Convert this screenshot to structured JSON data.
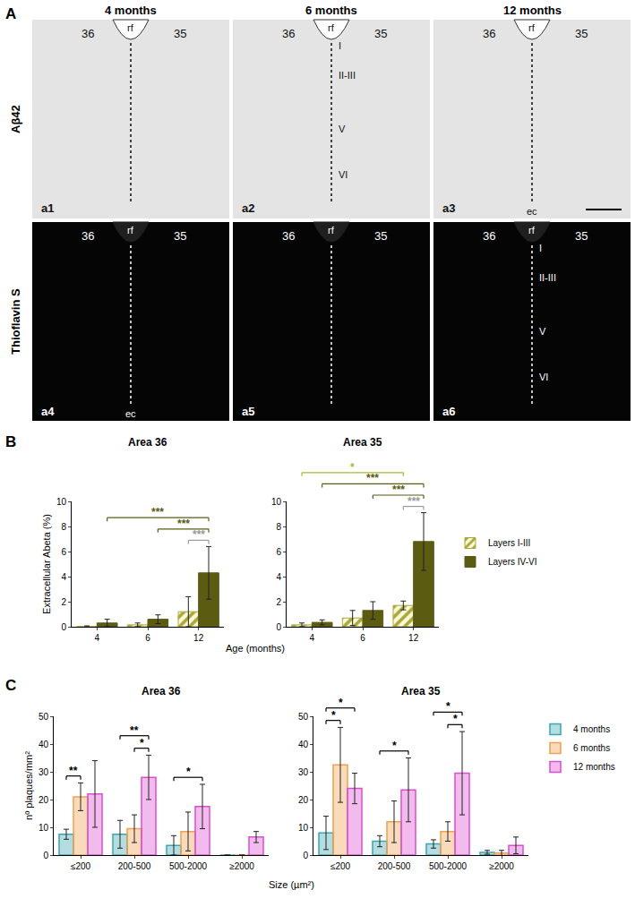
{
  "panel_labels": [
    "A",
    "B",
    "C"
  ],
  "images": {
    "column_titles": [
      "4 months",
      "6 months",
      "12 months"
    ],
    "row_titles": [
      "Aβ42",
      "Thioflavin S"
    ],
    "tiles": [
      [
        {
          "id": "a1",
          "left": "36",
          "right": "35",
          "fissure": "rf"
        },
        {
          "id": "a2",
          "left": "36",
          "right": "35",
          "fissure": "rf",
          "layers": [
            "I",
            "II-III",
            "V",
            "VI"
          ]
        },
        {
          "id": "a3",
          "left": "36",
          "right": "35",
          "fissure": "rf",
          "bottom": "ec"
        }
      ],
      [
        {
          "id": "a4",
          "left": "36",
          "right": "35",
          "fissure": "rf",
          "bottom": "ec"
        },
        {
          "id": "a5",
          "left": "36",
          "right": "35",
          "fissure": "rf"
        },
        {
          "id": "a6",
          "left": "36",
          "right": "35",
          "fissure": "rf",
          "layers": [
            "I",
            "II-III",
            "V",
            "VI"
          ]
        }
      ]
    ]
  },
  "chart_data": [
    {
      "type": "bar",
      "title": "Area 36",
      "categories": [
        "4",
        "6",
        "12"
      ],
      "xlabel": "Age (months)",
      "ylabel": "Extracellular Abeta (%)",
      "ylim": [
        0,
        10
      ],
      "yticks": [
        0,
        2,
        4,
        6,
        8,
        10
      ],
      "series": [
        {
          "name": "Layers I-III",
          "color": "#a9a83a",
          "marker": "hatched",
          "values": [
            0.02,
            0.15,
            1.2
          ],
          "errors": [
            0.05,
            0.15,
            1.2
          ]
        },
        {
          "name": "Layers IV-VI",
          "color": "#5b5b12",
          "values": [
            0.3,
            0.6,
            4.3
          ],
          "errors": [
            0.3,
            0.35,
            2.1
          ]
        }
      ],
      "significance": [
        {
          "from": {
            "category": "12",
            "series": "Layers I-III"
          },
          "to": {
            "category": "12",
            "series": "Layers IV-VI"
          },
          "text": "***",
          "color": "#9a9a9a"
        },
        {
          "from": {
            "category": "6",
            "series": "Layers IV-VI"
          },
          "to": {
            "category": "12",
            "series": "Layers IV-VI"
          },
          "text": "***",
          "color": "#5b5b12"
        },
        {
          "from": {
            "category": "4",
            "series": "Layers IV-VI"
          },
          "to": {
            "category": "12",
            "series": "Layers IV-VI"
          },
          "text": "***",
          "color": "#5b5b12"
        }
      ]
    },
    {
      "type": "bar",
      "title": "Area 35",
      "categories": [
        "4",
        "6",
        "12"
      ],
      "ylim": [
        0,
        10
      ],
      "yticks": [
        0,
        2,
        4,
        6,
        8,
        10
      ],
      "legend": "right",
      "series": [
        {
          "name": "Layers I-III",
          "color": "#a9a83a",
          "marker": "hatched",
          "values": [
            0.15,
            0.7,
            1.7
          ],
          "errors": [
            0.15,
            0.6,
            0.35
          ]
        },
        {
          "name": "Layers IV-VI",
          "color": "#5b5b12",
          "values": [
            0.35,
            1.3,
            6.8
          ],
          "errors": [
            0.2,
            0.7,
            2.3
          ]
        }
      ],
      "significance": [
        {
          "from": {
            "category": "12",
            "series": "Layers I-III"
          },
          "to": {
            "category": "12",
            "series": "Layers IV-VI"
          },
          "text": "***",
          "color": "#9a9a9a"
        },
        {
          "from": {
            "category": "6",
            "series": "Layers IV-VI"
          },
          "to": {
            "category": "12",
            "series": "Layers IV-VI"
          },
          "text": "***",
          "color": "#5b5b12"
        },
        {
          "from": {
            "category": "4",
            "series": "Layers IV-VI"
          },
          "to": {
            "category": "12",
            "series": "Layers IV-VI"
          },
          "text": "***",
          "color": "#5b5b12"
        },
        {
          "from": {
            "category": "4",
            "series": "Layers I-III"
          },
          "to": {
            "category": "12",
            "series": "Layers I-III"
          },
          "text": "*",
          "color": "#a8b832"
        }
      ]
    },
    {
      "type": "bar",
      "title": "Area 36",
      "categories": [
        "≤200",
        "200-500",
        "500-2000",
        "≥2000"
      ],
      "xlabel": "Size (µm²)",
      "ylabel": "nº plaques/mm²",
      "ylim": [
        0,
        50
      ],
      "yticks": [
        0,
        10,
        20,
        30,
        40,
        50
      ],
      "series": [
        {
          "name": "4 months",
          "color": "#3aa6b0",
          "marker": "outlined",
          "values": [
            7.5,
            7.5,
            3.5,
            0
          ],
          "errors": [
            1.8,
            5,
            3.5,
            0
          ]
        },
        {
          "name": "6 months",
          "color": "#f0a050",
          "marker": "outlined",
          "values": [
            21,
            9.5,
            8.5,
            0
          ],
          "errors": [
            5,
            5,
            7,
            0
          ]
        },
        {
          "name": "12 months",
          "color": "#d94fd0",
          "marker": "outlined",
          "values": [
            22,
            28,
            17.5,
            6.5
          ],
          "errors": [
            12,
            8,
            8,
            2
          ]
        }
      ],
      "significance": [
        {
          "from": {
            "category": "≤200",
            "series": "4 months"
          },
          "to": {
            "category": "≤200",
            "series": "6 months"
          },
          "text": "**",
          "color": "#000000"
        },
        {
          "from": {
            "category": "200-500",
            "series": "6 months"
          },
          "to": {
            "category": "200-500",
            "series": "12 months"
          },
          "text": "*",
          "color": "#000000"
        },
        {
          "from": {
            "category": "200-500",
            "series": "4 months"
          },
          "to": {
            "category": "200-500",
            "series": "12 months"
          },
          "text": "**",
          "color": "#000000"
        },
        {
          "from": {
            "category": "500-2000",
            "series": "4 months"
          },
          "to": {
            "category": "500-2000",
            "series": "12 months"
          },
          "text": "*",
          "color": "#000000"
        }
      ]
    },
    {
      "type": "bar",
      "title": "Area 35",
      "categories": [
        "≤200",
        "200-500",
        "500-2000",
        "≥2000"
      ],
      "ylim": [
        0,
        50
      ],
      "yticks": [
        0,
        10,
        20,
        30,
        40,
        50
      ],
      "legend": "right",
      "series": [
        {
          "name": "4 months",
          "color": "#3aa6b0",
          "marker": "outlined",
          "values": [
            8,
            5,
            4,
            1
          ],
          "errors": [
            6,
            2,
            1.5,
            0.7
          ]
        },
        {
          "name": "6 months",
          "color": "#f0a050",
          "marker": "outlined",
          "values": [
            32.5,
            12,
            8.5,
            0.7
          ],
          "errors": [
            13.5,
            7.5,
            3.5,
            1
          ]
        },
        {
          "name": "12 months",
          "color": "#d94fd0",
          "marker": "outlined",
          "values": [
            24,
            23.5,
            29.5,
            3.5
          ],
          "errors": [
            5.5,
            11.5,
            15,
            3
          ]
        }
      ],
      "significance": [
        {
          "from": {
            "category": "≤200",
            "series": "4 months"
          },
          "to": {
            "category": "≤200",
            "series": "6 months"
          },
          "text": "*",
          "color": "#000000"
        },
        {
          "from": {
            "category": "≤200",
            "series": "4 months"
          },
          "to": {
            "category": "≤200",
            "series": "12 months"
          },
          "text": "*",
          "color": "#000000"
        },
        {
          "from": {
            "category": "200-500",
            "series": "4 months"
          },
          "to": {
            "category": "200-500",
            "series": "12 months"
          },
          "text": "*",
          "color": "#000000"
        },
        {
          "from": {
            "category": "500-2000",
            "series": "6 months"
          },
          "to": {
            "category": "500-2000",
            "series": "12 months"
          },
          "text": "*",
          "color": "#000000"
        },
        {
          "from": {
            "category": "500-2000",
            "series": "4 months"
          },
          "to": {
            "category": "500-2000",
            "series": "12 months"
          },
          "text": "*",
          "color": "#000000"
        }
      ]
    }
  ]
}
